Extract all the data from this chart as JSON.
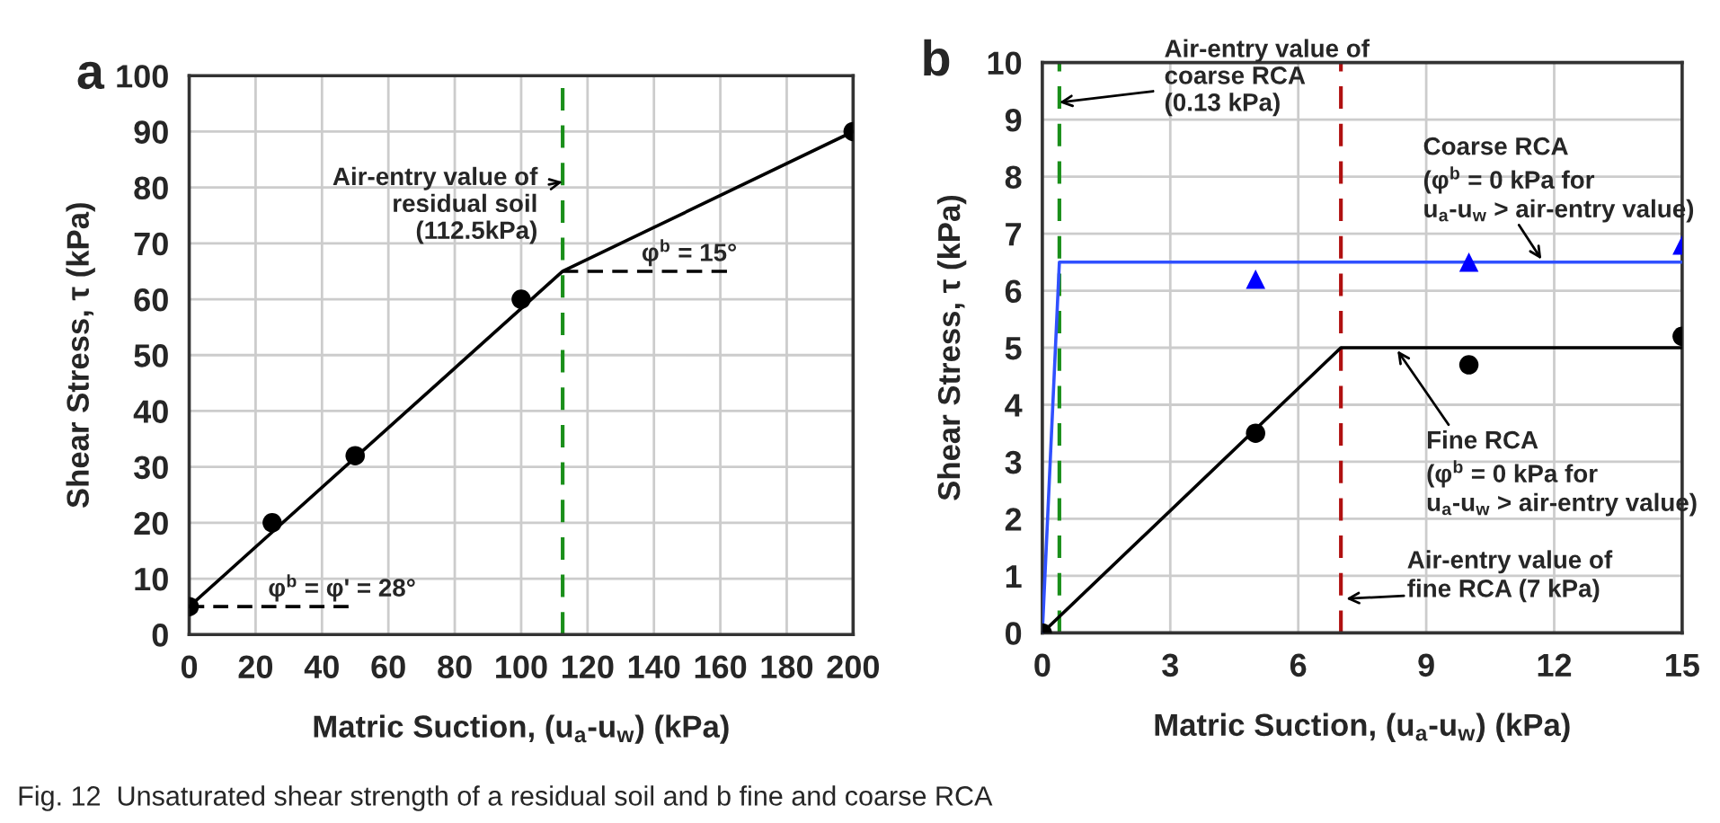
{
  "chart_data": [
    {
      "type": "scatter",
      "title": "a",
      "xlabel": "Matric Suction, (u$_{a}$-u$_{w}$) (kPa)",
      "ylabel": "Shear Stress, τ (kPa)",
      "xlim": [
        0,
        200
      ],
      "xticks": [
        0,
        20,
        40,
        60,
        80,
        100,
        120,
        140,
        160,
        180,
        200
      ],
      "ylim": [
        0,
        100
      ],
      "yticks": [
        0,
        10,
        20,
        30,
        40,
        50,
        60,
        70,
        80,
        90,
        100
      ],
      "grid": true,
      "series": [
        {
          "color": "#000000",
          "marker": "circle",
          "x": [
            0,
            25,
            50,
            100,
            200
          ],
          "values": [
            5,
            20,
            32,
            60,
            90
          ]
        },
        {
          "type": "line",
          "color": "#000000",
          "line_style": "solid",
          "x": [
            0,
            112.5,
            200
          ],
          "values": [
            5,
            65,
            90
          ]
        },
        {
          "type": "line",
          "color": "#000000",
          "line_style": "dashed",
          "x": [
            0,
            48
          ],
          "values": [
            5,
            5
          ]
        },
        {
          "type": "line",
          "color": "#000000",
          "line_style": "dashed",
          "x": [
            112.5,
            162
          ],
          "values": [
            65,
            65
          ]
        }
      ],
      "ref_lines": [
        {
          "axis": "x",
          "value": 112.5,
          "color": "#1a8f1a",
          "line_style": "dashed"
        }
      ],
      "annotations": [
        {
          "text": "Air-entry value of\nresidual soil\n(112.5kPa)",
          "x": 112.5,
          "y": 81
        },
        {
          "text": "φ$^{b}$ = 15°",
          "x": 140,
          "y": 65
        },
        {
          "text": "φ$^{b}$ = φ' = 28°",
          "x": 20,
          "y": 5
        },
        "Fig. 12  Unsaturated shear strength of a residual soil and b fine and coarse RCA"
      ]
    },
    {
      "type": "scatter",
      "title": "b",
      "xlabel": "Matric Suction, (u$_{a}$-u$_{w}$) (kPa)",
      "ylabel": "Shear Stress, τ (kPa)",
      "xlim": [
        0,
        15
      ],
      "xticks": [
        0,
        3,
        6,
        9,
        12,
        15
      ],
      "ylim": [
        0,
        10
      ],
      "yticks": [
        0,
        1,
        2,
        3,
        4,
        5,
        6,
        7,
        8,
        9,
        10
      ],
      "grid": true,
      "series": [
        {
          "color": "#000000",
          "marker": "circle",
          "x": [
            0,
            5,
            10,
            15
          ],
          "values": [
            0,
            3.5,
            4.7,
            5.2
          ]
        },
        {
          "color": "#0000ff",
          "marker": "triangle",
          "x": [
            5,
            10,
            15
          ],
          "values": [
            6.2,
            6.5,
            6.8
          ]
        },
        {
          "type": "line",
          "color": "#000000",
          "line_style": "solid",
          "x": [
            0,
            7,
            15
          ],
          "values": [
            0,
            5,
            5
          ]
        },
        {
          "type": "line",
          "color": "#3050ff",
          "line_style": "solid",
          "x": [
            0,
            0.4,
            15
          ],
          "values": [
            0,
            6.5,
            6.5
          ]
        }
      ],
      "ref_lines": [
        {
          "axis": "x",
          "value": 0.4,
          "color": "#1a8f1a",
          "line_style": "dashed"
        },
        {
          "axis": "x",
          "value": 7,
          "color": "#b01010",
          "line_style": "dashed"
        }
      ],
      "annotations": [
        {
          "text": "Air-entry value of\ncoarse RCA\n(0.13 kPa)",
          "x": 0.4,
          "y": 9.3
        },
        "Coarse RCA\n(φ$^{b}$ = 0 kPa for\nu$_{a}$-u$_{w}$ > air-entry value)",
        "Fine RCA\n(φ$^{b}$ = 0 kPa for\nu$_{a}$-u$_{w}$ > air-entry value)",
        "Air-entry value of\nfine RCA (7 kPa)"
      ]
    }
  ]
}
